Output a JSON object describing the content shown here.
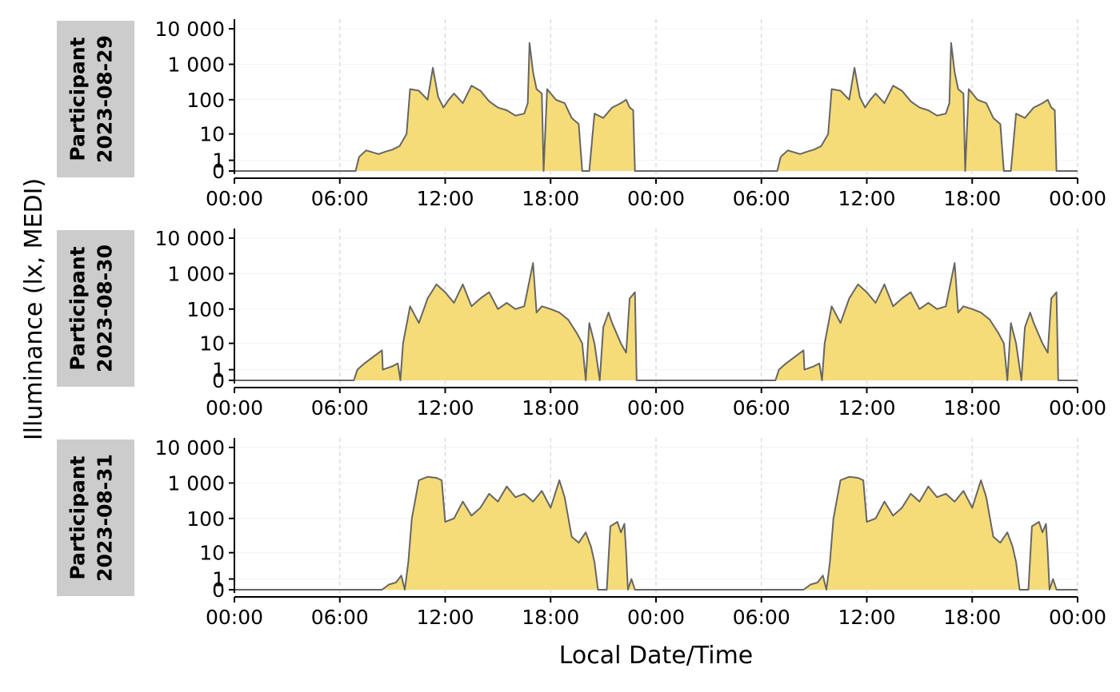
{
  "chart_data": {
    "type": "area",
    "xlabel": "Local Date/Time",
    "ylabel": "Illuminance (lx, MEDI)",
    "y_scale": "symlog",
    "y_ticks": [
      "0",
      "1",
      "10",
      "100",
      "1 000",
      "10 000"
    ],
    "y_tick_values": [
      0,
      1,
      10,
      100,
      1000,
      10000
    ],
    "x_ticks": [
      "00:00",
      "06:00",
      "12:00",
      "18:00",
      "00:00",
      "06:00",
      "12:00",
      "18:00",
      "00:00"
    ],
    "x_range_hours": [
      0,
      48
    ],
    "grid": "vertical dashed at 6-hour ticks",
    "colors": {
      "fill": "#f5dc79",
      "line": "#666666",
      "strip": "#cccccc"
    },
    "panels": [
      {
        "strip": [
          "Participant",
          "2023-08-29"
        ],
        "points": [
          [
            0,
            0
          ],
          [
            6.9,
            0
          ],
          [
            7.1,
            1.5
          ],
          [
            7.5,
            2.8
          ],
          [
            8.2,
            2
          ],
          [
            8.6,
            2.5
          ],
          [
            9,
            3
          ],
          [
            9.4,
            4
          ],
          [
            9.8,
            10
          ],
          [
            10,
            200
          ],
          [
            10.5,
            180
          ],
          [
            11,
            100
          ],
          [
            11.3,
            800
          ],
          [
            11.6,
            120
          ],
          [
            11.9,
            60
          ],
          [
            12.2,
            100
          ],
          [
            12.5,
            150
          ],
          [
            13,
            80
          ],
          [
            13.5,
            250
          ],
          [
            14,
            180
          ],
          [
            14.5,
            90
          ],
          [
            15,
            60
          ],
          [
            15.5,
            50
          ],
          [
            16,
            35
          ],
          [
            16.5,
            40
          ],
          [
            16.7,
            80
          ],
          [
            16.8,
            4000
          ],
          [
            17,
            600
          ],
          [
            17.2,
            200
          ],
          [
            17.5,
            150
          ],
          [
            17.6,
            0
          ],
          [
            17.8,
            200
          ],
          [
            18.3,
            100
          ],
          [
            18.8,
            80
          ],
          [
            19.2,
            30
          ],
          [
            19.6,
            20
          ],
          [
            19.8,
            0
          ],
          [
            20.2,
            0
          ],
          [
            20.5,
            40
          ],
          [
            21,
            30
          ],
          [
            21.5,
            60
          ],
          [
            22,
            80
          ],
          [
            22.3,
            100
          ],
          [
            22.5,
            60
          ],
          [
            22.7,
            50
          ],
          [
            22.8,
            0
          ],
          [
            24,
            0
          ]
        ]
      },
      {
        "strip": [
          "Participant",
          "2023-08-30"
        ],
        "points": [
          [
            0,
            0
          ],
          [
            6.8,
            0
          ],
          [
            7,
            1
          ],
          [
            7.4,
            2
          ],
          [
            8,
            4
          ],
          [
            8.4,
            6
          ],
          [
            8.45,
            1
          ],
          [
            9,
            1.5
          ],
          [
            9.3,
            2
          ],
          [
            9.45,
            0
          ],
          [
            9.6,
            10
          ],
          [
            10,
            120
          ],
          [
            10.5,
            40
          ],
          [
            11,
            200
          ],
          [
            11.5,
            500
          ],
          [
            12,
            300
          ],
          [
            12.5,
            150
          ],
          [
            13,
            500
          ],
          [
            13.5,
            120
          ],
          [
            14,
            200
          ],
          [
            14.5,
            300
          ],
          [
            15,
            100
          ],
          [
            15.5,
            150
          ],
          [
            16,
            100
          ],
          [
            16.5,
            120
          ],
          [
            17,
            2000
          ],
          [
            17.2,
            80
          ],
          [
            17.5,
            120
          ],
          [
            18,
            100
          ],
          [
            18.5,
            80
          ],
          [
            19,
            50
          ],
          [
            19.5,
            20
          ],
          [
            19.8,
            10
          ],
          [
            20,
            0
          ],
          [
            20.2,
            40
          ],
          [
            20.5,
            10
          ],
          [
            20.8,
            0
          ],
          [
            21,
            30
          ],
          [
            21.3,
            80
          ],
          [
            21.5,
            40
          ],
          [
            22,
            10
          ],
          [
            22.3,
            5
          ],
          [
            22.5,
            200
          ],
          [
            22.8,
            300
          ],
          [
            22.9,
            0
          ],
          [
            24,
            0
          ]
        ]
      },
      {
        "strip": [
          "Participant",
          "2023-08-31"
        ],
        "points": [
          [
            0,
            0
          ],
          [
            8.4,
            0
          ],
          [
            8.8,
            0.4
          ],
          [
            9.2,
            0.6
          ],
          [
            9.5,
            1.5
          ],
          [
            9.7,
            0
          ],
          [
            9.9,
            5
          ],
          [
            10.1,
            100
          ],
          [
            10.5,
            1200
          ],
          [
            11,
            1500
          ],
          [
            11.5,
            1400
          ],
          [
            11.8,
            1200
          ],
          [
            12,
            80
          ],
          [
            12.5,
            100
          ],
          [
            13,
            300
          ],
          [
            13.5,
            120
          ],
          [
            14,
            200
          ],
          [
            14.5,
            500
          ],
          [
            15,
            300
          ],
          [
            15.5,
            800
          ],
          [
            16,
            400
          ],
          [
            16.5,
            500
          ],
          [
            17,
            300
          ],
          [
            17.5,
            600
          ],
          [
            18,
            200
          ],
          [
            18.5,
            1200
          ],
          [
            18.8,
            400
          ],
          [
            19.2,
            30
          ],
          [
            19.6,
            20
          ],
          [
            20,
            40
          ],
          [
            20.3,
            15
          ],
          [
            20.5,
            5
          ],
          [
            20.7,
            0
          ],
          [
            21.2,
            0
          ],
          [
            21.4,
            60
          ],
          [
            21.8,
            80
          ],
          [
            22,
            40
          ],
          [
            22.2,
            70
          ],
          [
            22.3,
            10
          ],
          [
            22.4,
            0
          ],
          [
            22.6,
            1
          ],
          [
            22.8,
            0
          ],
          [
            24,
            0
          ]
        ]
      }
    ]
  }
}
